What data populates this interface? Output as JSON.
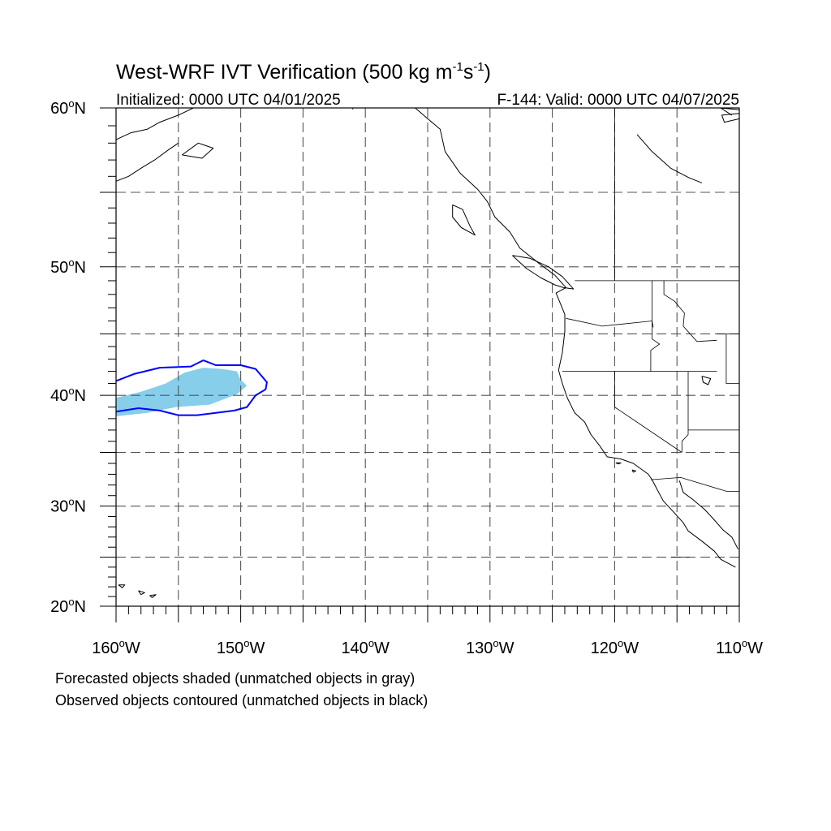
{
  "figure": {
    "title_main": "West-WRF IVT Verification (500 kg m",
    "title_exp1": "-1",
    "title_mid": "s",
    "title_exp2": "-1",
    "title_end": ")",
    "subtitle_left": "Initialized: 0000 UTC 04/01/2025",
    "subtitle_right": "F-144: Valid: 0000 UTC 04/07/2025"
  },
  "axes": {
    "lon_range": [
      -160,
      -110
    ],
    "lat_range": [
      20,
      60
    ],
    "lon_ticks": [
      {
        "value": -160,
        "label": "160",
        "hemi": "W"
      },
      {
        "value": -150,
        "label": "150",
        "hemi": "W"
      },
      {
        "value": -140,
        "label": "140",
        "hemi": "W"
      },
      {
        "value": -130,
        "label": "130",
        "hemi": "W"
      },
      {
        "value": -120,
        "label": "120",
        "hemi": "W"
      },
      {
        "value": -110,
        "label": "110",
        "hemi": "W"
      }
    ],
    "lat_ticks": [
      {
        "value": 60,
        "label": "60",
        "hemi": "N"
      },
      {
        "value": 50,
        "label": "50",
        "hemi": "N"
      },
      {
        "value": 40,
        "label": "40",
        "hemi": "N"
      },
      {
        "value": 30,
        "label": "30",
        "hemi": "N"
      },
      {
        "value": 20,
        "label": "20",
        "hemi": "N"
      }
    ],
    "gridline_step_deg": 5,
    "gridlines": "dashed"
  },
  "legend": {
    "line1": "Forecasted objects shaded (unmatched objects in gray)",
    "line2": "Observed objects contoured (unmatched objects in black)"
  },
  "colors": {
    "forecast_fill": "#87ceeb",
    "observed_contour": "#0000ff",
    "coastline": "#000000",
    "grid": "#555555"
  },
  "objects": {
    "forecast": [
      {
        "lonlat": [
          [
            -160,
            39.8
          ],
          [
            -158,
            40.3
          ],
          [
            -156,
            41.0
          ],
          [
            -154.5,
            41.9
          ],
          [
            -153,
            42.3
          ],
          [
            -151.5,
            42.2
          ],
          [
            -150.3,
            42.0
          ],
          [
            -150,
            41.3
          ],
          [
            -149.5,
            40.8
          ],
          [
            -150.3,
            40.1
          ],
          [
            -152.5,
            39.2
          ],
          [
            -155.2,
            39.0
          ],
          [
            -157.5,
            38.5
          ],
          [
            -160,
            38.2
          ]
        ]
      }
    ],
    "observed": [
      {
        "lonlat": [
          [
            -160,
            41.2
          ],
          [
            -158.5,
            41.8
          ],
          [
            -156.5,
            42.3
          ],
          [
            -154,
            42.4
          ],
          [
            -153,
            42.9
          ],
          [
            -152,
            42.5
          ],
          [
            -150,
            42.5
          ],
          [
            -148.8,
            42.2
          ],
          [
            -147.9,
            41.1
          ],
          [
            -148,
            40.5
          ],
          [
            -148.8,
            40.0
          ],
          [
            -149.5,
            39.0
          ],
          [
            -150.5,
            38.7
          ],
          [
            -152,
            38.5
          ],
          [
            -153.5,
            38.3
          ],
          [
            -155,
            38.3
          ],
          [
            -156.5,
            38.7
          ],
          [
            -158.2,
            38.9
          ],
          [
            -160,
            38.6
          ]
        ]
      }
    ]
  },
  "coastlines": [
    {
      "lonlat": [
        [
          -136,
          60
        ],
        [
          -135,
          59.4
        ],
        [
          -134,
          58.8
        ],
        [
          -133.6,
          57.5
        ],
        [
          -132.4,
          56.2
        ],
        [
          -131,
          55.2
        ],
        [
          -130.2,
          54.4
        ],
        [
          -129.6,
          53.4
        ],
        [
          -128.4,
          52.4
        ],
        [
          -127.6,
          51.3
        ],
        [
          -126,
          50.2
        ],
        [
          -124.8,
          49.4
        ],
        [
          -123.9,
          48.5
        ],
        [
          -124.7,
          48.1
        ],
        [
          -124,
          46.5
        ],
        [
          -124,
          45.2
        ],
        [
          -124.2,
          43.5
        ],
        [
          -124.5,
          42.1
        ],
        [
          -124.2,
          41
        ],
        [
          -123.8,
          39.8
        ],
        [
          -123.2,
          38.5
        ],
        [
          -122.4,
          37.7
        ],
        [
          -121.9,
          36.6
        ],
        [
          -121.2,
          35.6
        ],
        [
          -120.6,
          34.6
        ],
        [
          -119.5,
          34.4
        ],
        [
          -118.5,
          34
        ],
        [
          -117.3,
          33
        ],
        [
          -117,
          32.5
        ],
        [
          -116.6,
          31.6
        ],
        [
          -116.1,
          30.5
        ],
        [
          -115.4,
          29.6
        ],
        [
          -114.5,
          28.4
        ],
        [
          -114.1,
          27.6
        ],
        [
          -113,
          26.6
        ],
        [
          -112,
          25.6
        ],
        [
          -111.5,
          24.8
        ],
        [
          -110.3,
          24
        ]
      ]
    },
    {
      "lonlat": [
        [
          -114.8,
          32.4
        ],
        [
          -114.5,
          31.3
        ],
        [
          -113.8,
          30.7
        ],
        [
          -112.8,
          29.7
        ],
        [
          -112.1,
          28.8
        ],
        [
          -111.3,
          27.7
        ],
        [
          -110.6,
          27
        ],
        [
          -110.1,
          25.8
        ]
      ]
    },
    {
      "lonlat": [
        [
          -128.2,
          50.8
        ],
        [
          -126.8,
          50.6
        ],
        [
          -125.3,
          50
        ],
        [
          -124.2,
          49.3
        ],
        [
          -123.3,
          48.4
        ],
        [
          -124.1,
          48.5
        ],
        [
          -124.8,
          48.7
        ],
        [
          -125.9,
          49.2
        ],
        [
          -127.1,
          49.9
        ],
        [
          -128.2,
          50.8
        ]
      ]
    },
    {
      "lonlat": [
        [
          -133,
          54.2
        ],
        [
          -132.2,
          53.9
        ],
        [
          -131.6,
          52.8
        ],
        [
          -131.2,
          52.2
        ],
        [
          -132.3,
          52.7
        ],
        [
          -133,
          53.4
        ],
        [
          -133,
          54.2
        ]
      ]
    },
    {
      "lonlat": [
        [
          -160,
          58.2
        ],
        [
          -158.8,
          58.6
        ],
        [
          -157.5,
          58.8
        ],
        [
          -156.5,
          59.2
        ],
        [
          -155,
          59.6
        ],
        [
          -153.8,
          60
        ]
      ]
    },
    {
      "lonlat": [
        [
          -160,
          55.7
        ],
        [
          -159,
          56
        ],
        [
          -158,
          56.5
        ],
        [
          -156.9,
          57
        ],
        [
          -155.8,
          57.6
        ],
        [
          -155,
          58
        ]
      ]
    },
    {
      "lonlat": [
        [
          -154.7,
          57.3
        ],
        [
          -153.4,
          58
        ],
        [
          -152.2,
          57.7
        ],
        [
          -153.1,
          57.1
        ],
        [
          -154.7,
          57.3
        ]
      ]
    },
    {
      "lonlat": [
        [
          -110,
          59.4
        ],
        [
          -111.2,
          59.2
        ],
        [
          -111.4,
          59.6
        ],
        [
          -110,
          59.7
        ]
      ]
    },
    {
      "lonlat": [
        [
          -155.9,
          19.9
        ],
        [
          -155,
          19.5
        ],
        [
          -155.7,
          18.9
        ],
        [
          -156,
          19.4
        ],
        [
          -155.9,
          19.9
        ]
      ]
    },
    {
      "lonlat": [
        [
          -157.3,
          21.1
        ],
        [
          -156.8,
          21.2
        ],
        [
          -157.1,
          20.9
        ],
        [
          -157.3,
          21.1
        ]
      ]
    },
    {
      "lonlat": [
        [
          -158.2,
          21.6
        ],
        [
          -157.7,
          21.4
        ],
        [
          -158,
          21.2
        ],
        [
          -158.2,
          21.6
        ]
      ]
    },
    {
      "lonlat": [
        [
          -159.8,
          22.2
        ],
        [
          -159.3,
          22.2
        ],
        [
          -159.5,
          21.9
        ],
        [
          -159.8,
          22.2
        ]
      ]
    },
    {
      "lonlat": [
        [
          -119.9,
          34.05
        ],
        [
          -119.5,
          34.05
        ],
        [
          -119.7,
          33.95
        ],
        [
          -119.9,
          34.05
        ]
      ]
    },
    {
      "lonlat": [
        [
          -118.6,
          33.4
        ],
        [
          -118.3,
          33.3
        ],
        [
          -118.5,
          33.2
        ],
        [
          -118.6,
          33.4
        ]
      ]
    },
    {
      "lonlat": [
        [
          -113,
          41.6
        ],
        [
          -112.3,
          41.4
        ],
        [
          -112.5,
          40.9
        ],
        [
          -112.9,
          41.1
        ],
        [
          -113,
          41.6
        ]
      ]
    },
    {
      "lonlat": [
        [
          -118.2,
          58.5
        ],
        [
          -117,
          57.5
        ],
        [
          -115.5,
          56.5
        ],
        [
          -114,
          55.9
        ],
        [
          -113,
          55.6
        ]
      ]
    },
    {
      "lonlat": [
        [
          -110,
          59.9
        ],
        [
          -111.5,
          60
        ],
        [
          -110.6,
          59.6
        ]
      ]
    }
  ],
  "borders": [
    {
      "lonlat": [
        [
          -123.2,
          49
        ],
        [
          -110,
          49
        ]
      ]
    },
    {
      "lonlat": [
        [
          -124.2,
          42
        ],
        [
          -111.8,
          42
        ]
      ]
    },
    {
      "lonlat": [
        [
          -123.9,
          46.2
        ],
        [
          -121,
          45.6
        ],
        [
          -117,
          46
        ],
        [
          -116.9,
          45.5
        ]
      ]
    },
    {
      "lonlat": [
        [
          -117,
          49
        ],
        [
          -117,
          44.6
        ],
        [
          -116.4,
          44.2
        ],
        [
          -117.1,
          43.7
        ],
        [
          -117.1,
          42
        ]
      ]
    },
    {
      "lonlat": [
        [
          -120,
          42
        ],
        [
          -120,
          39
        ],
        [
          -114.6,
          35
        ]
      ]
    },
    {
      "lonlat": [
        [
          -114.1,
          42
        ],
        [
          -114.1,
          36.6
        ],
        [
          -114.6,
          36
        ],
        [
          -114.6,
          35
        ]
      ]
    },
    {
      "lonlat": [
        [
          -114.1,
          37
        ],
        [
          -110,
          37
        ]
      ]
    },
    {
      "lonlat": [
        [
          -111.8,
          45
        ],
        [
          -110,
          45
        ]
      ]
    },
    {
      "lonlat": [
        [
          -111.05,
          45
        ],
        [
          -111.05,
          41
        ],
        [
          -110,
          41
        ]
      ]
    },
    {
      "lonlat": [
        [
          -116.05,
          49
        ],
        [
          -116.05,
          48
        ],
        [
          -115.2,
          47.5
        ],
        [
          -114.4,
          46.6
        ],
        [
          -114.5,
          45.6
        ],
        [
          -113.4,
          44.4
        ],
        [
          -111.8,
          44.5
        ]
      ]
    },
    {
      "lonlat": [
        [
          -117.1,
          32.5
        ],
        [
          -114.7,
          32.7
        ],
        [
          -111,
          31.4
        ],
        [
          -110,
          31.4
        ]
      ]
    },
    {
      "lonlat": [
        [
          -141,
          60
        ],
        [
          -141,
          59.9
        ]
      ]
    },
    {
      "lonlat": [
        [
          -120,
          60
        ],
        [
          -120,
          49
        ]
      ]
    },
    {
      "lonlat": [
        [
          -115.5,
          25
        ],
        [
          -114,
          25
        ]
      ]
    }
  ]
}
